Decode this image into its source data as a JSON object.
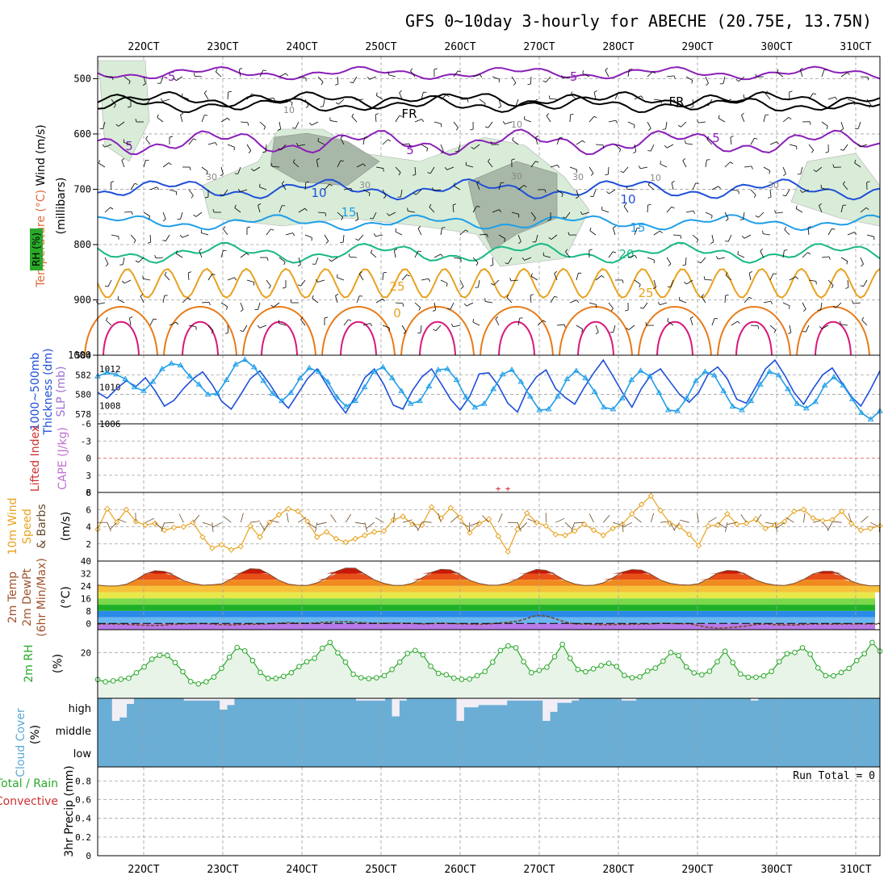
{
  "title": "GFS 0~10day 3-hourly for ABECHE (20.75E, 13.75N)",
  "x_ticks": [
    "22OCT",
    "23OCT",
    "24OCT",
    "25OCT",
    "26OCT",
    "27OCT",
    "28OCT",
    "29OCT",
    "30OCT",
    "31OCT"
  ],
  "colors": {
    "purple": "#8a1fb8",
    "black": "#000000",
    "blue": "#1f4fd8",
    "lightblue": "#1f9ee8",
    "teal": "#18b884",
    "orange": "#e8a21f",
    "darkorange": "#e87a18",
    "magenta": "#d8187a",
    "cloud": "#6aaed6",
    "green": "#2aa82a",
    "rh_fill": "#e8f4e8"
  },
  "chart_data": [
    {
      "type": "contour",
      "panel": "upper-air",
      "ylabels": [
        "RH (%)",
        "Temperature (°C)",
        "Wind (m/s)",
        "(millibars)"
      ],
      "yticks": [
        "500",
        "600",
        "700",
        "800",
        "900",
        "1000"
      ],
      "contour_labels": [
        {
          "text": "-5",
          "color": "purple"
        },
        {
          "text": "-5",
          "color": "purple"
        },
        {
          "text": "FR",
          "color": "black"
        },
        {
          "text": "FR",
          "color": "black"
        },
        {
          "text": "5",
          "color": "purple"
        },
        {
          "text": "5",
          "color": "purple"
        },
        {
          "text": "5",
          "color": "purple"
        },
        {
          "text": "10",
          "color": "blue"
        },
        {
          "text": "10",
          "color": "blue"
        },
        {
          "text": "15",
          "color": "lightblue"
        },
        {
          "text": "15",
          "color": "lightblue"
        },
        {
          "text": "20",
          "color": "teal"
        },
        {
          "text": "25",
          "color": "orange"
        },
        {
          "text": "25",
          "color": "orange"
        },
        {
          "text": "0",
          "color": "orange"
        },
        {
          "text": "30",
          "color": "gray"
        },
        {
          "text": "30",
          "color": "gray"
        },
        {
          "text": "30",
          "color": "gray"
        },
        {
          "text": "30",
          "color": "gray"
        },
        {
          "text": "30",
          "color": "gray"
        },
        {
          "text": "10",
          "color": "gray"
        },
        {
          "text": "10",
          "color": "gray"
        },
        {
          "text": "10",
          "color": "gray"
        }
      ],
      "isotherms_pressure_mb": {
        "-5": 490,
        "FR": 545,
        "5": 615,
        "10": 700,
        "15": 760,
        "20": 815,
        "25": 880
      }
    },
    {
      "type": "line",
      "panel": "slp-thickness",
      "ylabels": [
        "1000~500mb",
        "Thickness (dm)",
        "SLP (mb)"
      ],
      "left_ticks": [
        "584",
        "582",
        "580",
        "578"
      ],
      "right_ticks": [
        "1012",
        "1010",
        "1008",
        "1006"
      ],
      "series": [
        {
          "axis": "left",
          "color": "blue",
          "values": [
            580.2,
            579.6,
            580.6,
            581.4,
            580.8,
            581.7,
            580.4,
            578.8,
            579.4,
            580.6,
            581.6,
            582.3,
            581.0,
            579.3,
            578.5,
            580.0,
            581.6,
            582.4,
            581.1,
            579.6,
            578.6,
            580.1,
            581.6,
            582.6,
            581.0,
            579.4,
            578.1,
            579.8,
            581.7,
            582.6,
            581.0,
            578.9,
            578.5,
            580.4,
            581.8,
            582.6,
            581.1,
            579.5,
            578.4,
            579.8,
            582.1,
            582.2,
            580.9,
            579.1,
            578.2,
            580.4,
            581.8,
            582.5,
            580.6,
            579.7,
            579.0,
            580.7,
            582.2,
            583.5,
            581.9,
            580.2,
            578.7,
            580.6,
            582.0,
            582.6,
            581.3,
            580.0,
            579.2,
            580.2,
            582.1,
            582.8,
            581.6,
            579.5,
            579.1,
            580.8,
            582.6,
            583.5,
            582.0,
            580.2,
            579.0,
            580.6,
            582.0,
            582.7,
            581.2,
            579.8,
            578.8,
            580.5,
            582.4
          ]
        },
        {
          "axis": "right",
          "color": "lightblue",
          "values": [
            1011.2,
            1011.6,
            1011.4,
            1010.9,
            1010.0,
            1009.6,
            1010.6,
            1012.0,
            1012.6,
            1012.4,
            1011.2,
            1010.3,
            1009.2,
            1009.3,
            1010.8,
            1012.5,
            1013.0,
            1012.2,
            1010.7,
            1009.3,
            1008.5,
            1009.4,
            1011.0,
            1012.1,
            1011.7,
            1010.6,
            1008.9,
            1007.9,
            1008.5,
            1010.0,
            1011.7,
            1012.2,
            1011.0,
            1009.6,
            1008.2,
            1008.5,
            1010.1,
            1011.9,
            1012.0,
            1010.8,
            1008.9,
            1007.8,
            1008.2,
            1009.8,
            1011.4,
            1011.9,
            1010.6,
            1009.0,
            1007.5,
            1007.6,
            1009.0,
            1010.9,
            1011.8,
            1011.0,
            1009.5,
            1007.8,
            1007.6,
            1008.8,
            1010.8,
            1011.8,
            1011.2,
            1009.4,
            1007.5,
            1007.4,
            1008.8,
            1010.7,
            1011.7,
            1011.3,
            1009.6,
            1007.9,
            1007.5,
            1008.5,
            1010.3,
            1011.7,
            1011.3,
            1009.8,
            1008.2,
            1007.7,
            1008.4,
            1010.2,
            1011.1,
            1010.2,
            1008.7,
            1007.2,
            1006.5,
            1007.4
          ]
        }
      ]
    },
    {
      "type": "line",
      "panel": "instability",
      "ylabels": [
        "Lifted Index",
        "CAPE (J/kg)"
      ],
      "left_ticks": [
        "-6",
        "-3",
        "0",
        "3",
        "6"
      ],
      "right_ticks": [
        "8"
      ],
      "markers": [
        "+",
        "+"
      ]
    },
    {
      "type": "line",
      "panel": "wind10m",
      "ylabels": [
        "10m Wind",
        "Speed",
        "& Barbs",
        "(m/s)"
      ],
      "yticks": [
        "8",
        "6",
        "4",
        "2"
      ],
      "ylim": [
        0,
        8
      ],
      "series": [
        {
          "name": "Speed",
          "color": "orange",
          "values": [
            3.7,
            6.1,
            4.5,
            6.0,
            4.6,
            4.2,
            4.4,
            3.6,
            3.9,
            4.0,
            4.5,
            2.8,
            1.5,
            1.9,
            1.3,
            1.7,
            4.1,
            2.8,
            4.5,
            5.4,
            6.1,
            5.8,
            4.6,
            2.8,
            3.4,
            2.6,
            2.2,
            2.6,
            3.0,
            3.4,
            3.5,
            4.8,
            5.2,
            4.3,
            4.2,
            6.3,
            5.0,
            6.2,
            5.1,
            3.3,
            4.4,
            4.9,
            2.9,
            1.1,
            3.7,
            5.6,
            4.5,
            4.1,
            3.1,
            3.0,
            3.5,
            4.3,
            3.6,
            3.0,
            3.8,
            4.3,
            5.5,
            6.6,
            7.6,
            5.9,
            4.4,
            4.0,
            3.1,
            1.8,
            4.1,
            4.2,
            5.5,
            4.3,
            4.4,
            4.9,
            3.8,
            4.2,
            4.6,
            5.8,
            6.0,
            5.0,
            4.7,
            4.8,
            5.8,
            4.4,
            3.6,
            3.8,
            4.1
          ]
        }
      ]
    },
    {
      "type": "area",
      "panel": "temperature2m",
      "ylabels": [
        "2m Temp",
        "2m DewPt",
        "(6hr Min/Max)",
        "(°C)"
      ],
      "yticks": [
        "40",
        "32",
        "24",
        "16",
        "8",
        "0"
      ],
      "ylim": [
        -4,
        40
      ],
      "series": [
        {
          "name": "2m Temp",
          "color": "brown",
          "values": [
            24.6,
            24.0,
            24.0,
            25.1,
            28.0,
            31.7,
            33.8,
            33.3,
            30.8,
            27.4,
            25.6,
            24.5,
            24.8,
            25.4,
            28.4,
            32.4,
            35.1,
            34.7,
            31.5,
            27.7,
            25.2,
            24.4,
            24.4,
            26.0,
            29.0,
            33.4,
            35.5,
            35.4,
            31.6,
            28.0,
            25.7,
            24.4,
            24.4,
            25.8,
            29.2,
            32.8,
            34.7,
            34.3,
            31.2,
            27.7,
            25.6,
            24.5,
            24.6,
            25.8,
            28.5,
            32.4,
            34.6,
            34.0,
            31.1,
            27.5,
            25.3,
            24.3,
            24.5,
            26.0,
            29.2,
            32.9,
            34.5,
            34.2,
            31.4,
            27.8,
            25.7,
            24.8,
            24.6,
            25.5,
            28.6,
            32.3,
            34.0,
            33.6,
            31.2,
            27.8,
            25.7,
            24.6,
            24.3,
            25.6,
            28.2,
            31.7,
            33.4,
            33.4,
            30.6,
            27.1,
            25.1,
            24.1,
            24.2
          ]
        },
        {
          "name": "2m DewPt",
          "color": "brown",
          "values": [
            -0.5,
            -0.3,
            -0.3,
            -0.6,
            -0.9,
            -1.2,
            -1.3,
            -1.1,
            -0.5,
            -0.4,
            -0.2,
            -0.1,
            -0.4,
            -0.8,
            -1.0,
            -0.7,
            -0.5,
            -0.5,
            -0.2,
            0.1,
            0.5,
            0.2,
            0.1,
            0.4,
            0.8,
            1.0,
            1.2,
            0.8,
            0.4,
            0.2,
            0.1,
            0.3,
            0.2,
            0.0,
            -0.3,
            -0.1,
            0.2,
            0.0,
            -0.2,
            -0.4,
            -0.6,
            -0.3,
            0.2,
            0.7,
            1.4,
            3.2,
            5.2,
            4.7,
            3.0,
            0.9,
            -0.3,
            -0.3,
            -0.6,
            -0.9,
            -0.7,
            -0.6,
            -0.6,
            -0.4,
            -0.3,
            0.1,
            0.0,
            -0.2,
            -0.1,
            -1.4,
            -2.5,
            -3.1,
            -2.8,
            -2.3,
            -1.6,
            -0.7,
            -0.3,
            -0.8,
            -1.0,
            -1.0,
            -0.7,
            -0.4,
            -0.4,
            -0.5,
            -0.3,
            -0.4,
            -0.4,
            -0.4,
            -0.4
          ]
        }
      ]
    },
    {
      "type": "line",
      "panel": "rh2m",
      "ylabels": [
        "2m RH",
        "(%)"
      ],
      "yticks": [
        "20"
      ],
      "ylim": [
        0,
        30
      ],
      "series": [
        {
          "name": "2m RH",
          "color": "green",
          "values": [
            8.2,
            7.2,
            7.6,
            8.3,
            8.8,
            11.2,
            13.7,
            17.1,
            18.8,
            18.7,
            15.6,
            11.6,
            7.3,
            6.3,
            7.2,
            9.3,
            13.1,
            18.0,
            22.2,
            20.7,
            16.5,
            11.3,
            8.7,
            8.7,
            9.6,
            11.2,
            13.9,
            16.0,
            17.5,
            21.9,
            24.4,
            19.9,
            15.8,
            10.5,
            9.0,
            8.6,
            9.0,
            9.9,
            12.6,
            15.8,
            19.6,
            20.9,
            19.0,
            14.0,
            10.9,
            10.3,
            8.8,
            8.3,
            8.4,
            9.9,
            11.7,
            15.8,
            20.9,
            22.9,
            22.1,
            16.0,
            11.2,
            12.2,
            13.6,
            18.2,
            23.6,
            17.5,
            12.6,
            11.6,
            12.9,
            14.3,
            15.3,
            13.9,
            10.0,
            9.0,
            9.4,
            11.9,
            13.2,
            16.2,
            20.0,
            18.7,
            13.7,
            11.1,
            10.3,
            11.8,
            16.0,
            20.6,
            15.6,
            10.6,
            9.2,
            9.2,
            9.8,
            11.7,
            16.0,
            19.5,
            20.0,
            22.1,
            19.3,
            13.3,
            9.9,
            9.8,
            11.3,
            13.1,
            16.5,
            19.5,
            24.4,
            20.6
          ]
        }
      ]
    },
    {
      "type": "bar",
      "panel": "cloud",
      "ylabels": [
        "Cloud Cover",
        "(%)"
      ],
      "yticks": [
        "high",
        "middle",
        "low"
      ],
      "high_values": [
        0,
        0,
        1.0,
        0.85,
        0.25,
        0,
        0,
        0,
        0,
        0,
        0,
        0,
        0.1,
        0.1,
        0.1,
        0.1,
        0.1,
        0.5,
        0.3,
        0,
        0,
        0,
        0,
        0,
        0,
        0,
        0,
        0,
        0,
        0,
        0,
        0,
        0,
        0,
        0,
        0,
        0.1,
        0.1,
        0.1,
        0.1,
        0,
        0.8,
        0.1,
        0,
        0,
        0,
        0,
        0,
        0,
        0,
        1.0,
        0.4,
        0.4,
        0.3,
        0.3,
        0.3,
        0.3,
        0.1,
        0.1,
        0.1,
        0.1,
        0.1,
        1.0,
        0.6,
        0.2,
        0.2,
        0.1,
        0,
        0,
        0,
        0,
        0,
        0,
        0.1,
        0.1,
        0,
        0,
        0,
        0,
        0,
        0,
        0,
        0,
        0,
        0,
        0,
        0,
        0,
        0,
        0,
        0,
        0.1,
        0,
        0,
        0,
        0,
        0,
        0,
        0,
        0,
        0,
        0,
        0,
        0,
        0,
        0,
        0,
        0,
        0
      ]
    },
    {
      "type": "bar",
      "panel": "precip",
      "ylabels": [
        "Total / Rain",
        "Convective",
        "3hr Precip (mm)"
      ],
      "yticks": [
        "0.8",
        "0.6",
        "0.4",
        "0.2",
        "0"
      ],
      "ylim": [
        0,
        0.95
      ],
      "run_total_label": "Run Total = 0",
      "values": []
    }
  ]
}
